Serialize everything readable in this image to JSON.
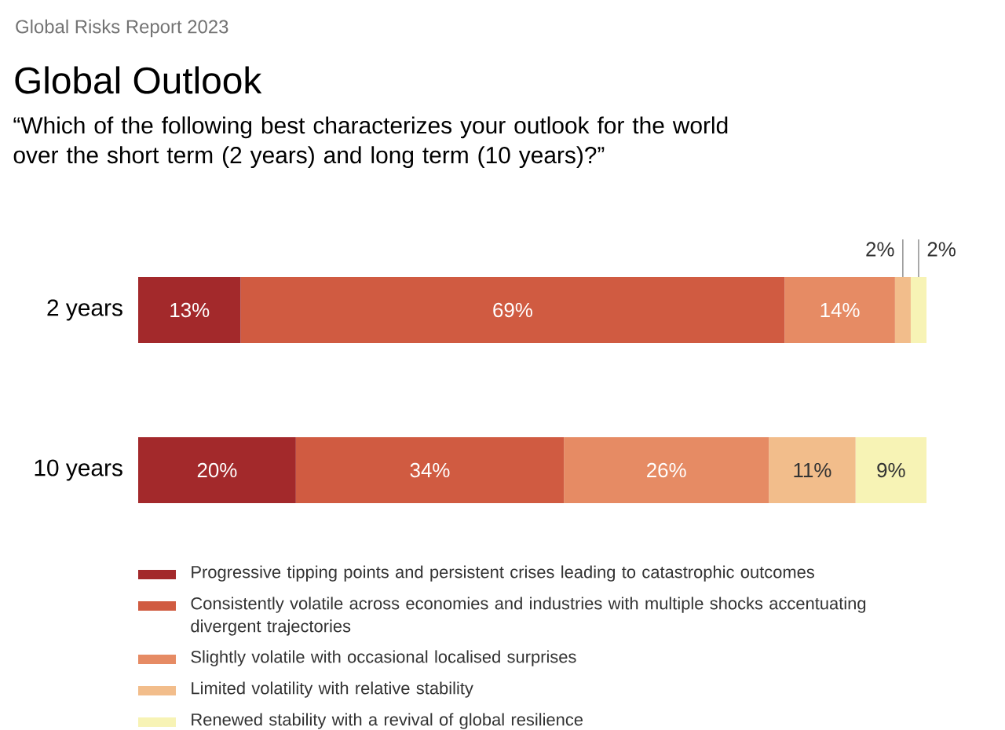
{
  "chart_data": {
    "type": "bar",
    "orientation": "horizontal",
    "stacked": true,
    "title": "Global Outlook",
    "subtitle": "“Which of the following best characterizes your outlook for the world over the short term (2 years) and long term (10 years)?”",
    "annotations": [
      "Global Risks Report 2023"
    ],
    "categories": [
      "2 years",
      "10 years"
    ],
    "xlim": [
      0,
      100
    ],
    "tick_labels": "y",
    "legend": "bottom",
    "series": [
      {
        "name": "Progressive tipping points and persistent crises leading to catastrophic outcomes",
        "color": "#a3292b",
        "values": [
          13,
          20
        ],
        "value_labels": [
          "13%",
          "20%"
        ]
      },
      {
        "name": "Consistently volatile across economies and industries with multiple shocks accentuating divergent trajectories",
        "color": "#d05b41",
        "values": [
          69,
          34
        ],
        "value_labels": [
          "69%",
          "34%"
        ]
      },
      {
        "name": "Slightly volatile with occasional localised surprises",
        "color": "#e68b64",
        "values": [
          14,
          26
        ],
        "value_labels": [
          "14%",
          "26%"
        ]
      },
      {
        "name": "Limited volatility with relative stability",
        "color": "#f2bd8b",
        "values": [
          2,
          11
        ],
        "value_labels": [
          "2%",
          "11%"
        ]
      },
      {
        "name": "Renewed stability with a revival of global resilience",
        "color": "#f7f3b5",
        "values": [
          2,
          9
        ],
        "value_labels": [
          "2%",
          "9%"
        ]
      }
    ]
  }
}
